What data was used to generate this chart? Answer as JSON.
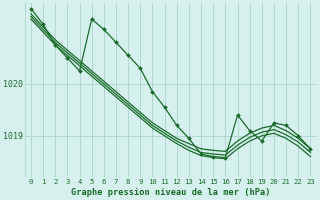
{
  "title": "Graphe pression niveau de la mer (hPa)",
  "bg_color": "#d6f0ee",
  "grid_color": "#b0d8d0",
  "line_color": "#1a6b2a",
  "ylim": [
    1018.2,
    1021.55
  ],
  "xlim": [
    -0.5,
    23.5
  ],
  "yticks": [
    1019,
    1020
  ],
  "xticks": [
    0,
    1,
    2,
    3,
    4,
    5,
    6,
    7,
    8,
    9,
    10,
    11,
    12,
    13,
    14,
    15,
    16,
    17,
    18,
    19,
    20,
    21,
    22,
    23
  ],
  "noisy_line": [
    1021.45,
    1021.15,
    1020.75,
    1020.5,
    1020.25,
    1021.25,
    1021.05,
    1020.8,
    1020.55,
    1020.3,
    1019.85,
    1019.55,
    1019.2,
    1018.95,
    1018.65,
    1018.6,
    1018.58,
    1019.4,
    1019.1,
    1018.9,
    1019.25,
    1019.2,
    1019.0,
    1018.75
  ],
  "trend1": [
    1021.35,
    1021.1,
    1020.85,
    1020.65,
    1020.45,
    1020.25,
    1020.05,
    1019.85,
    1019.65,
    1019.45,
    1019.25,
    1019.1,
    1018.95,
    1018.85,
    1018.75,
    1018.72,
    1018.7,
    1018.9,
    1019.05,
    1019.15,
    1019.2,
    1019.1,
    1018.95,
    1018.75
  ],
  "trend2": [
    1021.3,
    1021.05,
    1020.8,
    1020.6,
    1020.4,
    1020.2,
    1020.0,
    1019.8,
    1019.6,
    1019.4,
    1019.2,
    1019.05,
    1018.9,
    1018.78,
    1018.68,
    1018.65,
    1018.63,
    1018.82,
    1018.97,
    1019.07,
    1019.12,
    1019.02,
    1018.88,
    1018.68
  ],
  "trend3": [
    1021.25,
    1021.0,
    1020.75,
    1020.55,
    1020.35,
    1020.15,
    1019.95,
    1019.75,
    1019.55,
    1019.35,
    1019.15,
    1019.0,
    1018.85,
    1018.72,
    1018.62,
    1018.58,
    1018.56,
    1018.75,
    1018.9,
    1019.0,
    1019.05,
    1018.95,
    1018.8,
    1018.6
  ]
}
